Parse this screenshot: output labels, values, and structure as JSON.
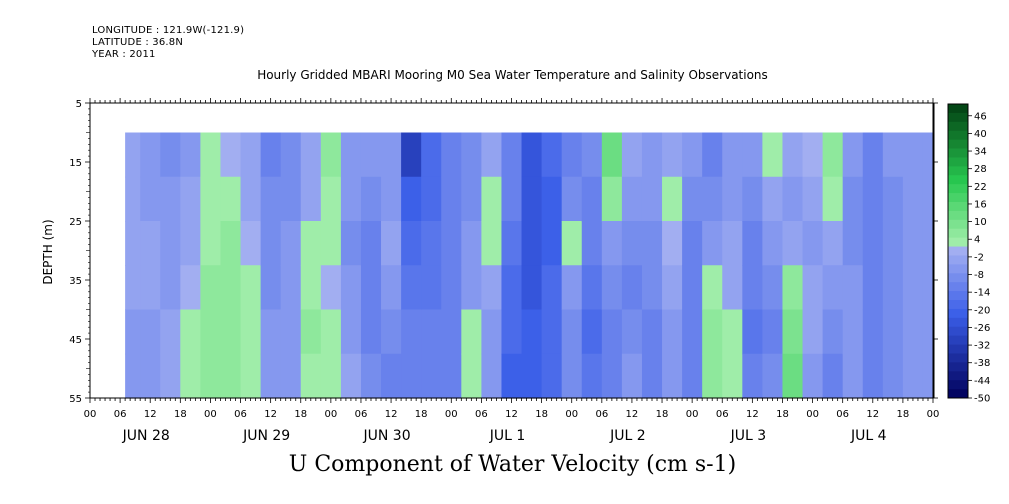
{
  "header": {
    "longitude": "LONGITUDE : 121.9W(-121.9)",
    "latitude": "LATITUDE : 36.8N",
    "year": "YEAR : 2011"
  },
  "chart_data": {
    "type": "heatmap",
    "title": "Hourly Gridded MBARI Mooring M0 Sea Water Temperature and Salinity Observations",
    "xlabel": "U Component of Water Velocity (cm s-1)",
    "ylabel": "DEPTH (m)",
    "y_ticks": [
      "5",
      "15",
      "25",
      "35",
      "45",
      "55"
    ],
    "ylim": [
      5,
      55
    ],
    "y_inverted": true,
    "data_depth_range": [
      10,
      55
    ],
    "hour_ticks": [
      "00",
      "06",
      "12",
      "18",
      "00",
      "06",
      "12",
      "18",
      "00",
      "06",
      "12",
      "18",
      "00",
      "06",
      "12",
      "18",
      "00",
      "06",
      "12",
      "18",
      "00",
      "06",
      "12",
      "18",
      "00",
      "06",
      "12",
      "18",
      "00"
    ],
    "day_labels": [
      "JUN 28",
      "JUN 29",
      "JUN 30",
      "JUL  1",
      "JUL  2",
      "JUL  3",
      "JUL  4"
    ],
    "time_range_hours": [
      0,
      168
    ],
    "data_start_hour": 7,
    "colorbar": {
      "labels": [
        "46",
        "40",
        "34",
        "28",
        "22",
        "16",
        "10",
        "4",
        "-2",
        "-8",
        "-14",
        "-20",
        "-26",
        "-32",
        "-38",
        "-44",
        "-50"
      ],
      "range": [
        -50,
        50
      ],
      "step": 3,
      "colors": {
        "deep_negative": "#00005a",
        "mid_negative": "#3a5ee8",
        "near_zero_negative": "#a9b4f2",
        "near_zero_positive": "#a8f0b0",
        "mid_positive": "#28c850",
        "deep_positive": "#003a10"
      }
    },
    "columns": [
      {
        "hour": 7,
        "values": [
          -4,
          -4,
          -4,
          -5,
          -6,
          -6
        ]
      },
      {
        "hour": 10,
        "values": [
          -8,
          -6,
          -5,
          -5,
          -6,
          -6
        ]
      },
      {
        "hour": 14,
        "values": [
          -10,
          -8,
          -7,
          -6,
          -5,
          -5
        ]
      },
      {
        "hour": 18,
        "values": [
          -6,
          -4,
          -3,
          -1,
          2,
          3
        ]
      },
      {
        "hour": 22,
        "values": [
          2,
          2,
          3,
          4,
          4,
          4
        ]
      },
      {
        "hour": 26,
        "values": [
          -2,
          3,
          4,
          4,
          5,
          5
        ]
      },
      {
        "hour": 30,
        "values": [
          -4,
          -3,
          -2,
          2,
          3,
          3
        ]
      },
      {
        "hour": 34,
        "values": [
          -12,
          -11,
          -10,
          -9,
          -8,
          -8
        ]
      },
      {
        "hour": 38,
        "values": [
          -10,
          -9,
          -8,
          -8,
          -7,
          -8
        ]
      },
      {
        "hour": 42,
        "values": [
          -4,
          -3,
          2,
          3,
          4,
          3
        ]
      },
      {
        "hour": 46,
        "values": [
          4,
          3,
          2,
          -2,
          2,
          2
        ]
      },
      {
        "hour": 50,
        "values": [
          -6,
          -8,
          -9,
          -8,
          -6,
          -5
        ]
      },
      {
        "hour": 54,
        "values": [
          -8,
          -10,
          -12,
          -13,
          -12,
          -11
        ]
      },
      {
        "hour": 58,
        "values": [
          -8,
          -6,
          -4,
          -6,
          -9,
          -12
        ]
      },
      {
        "hour": 62,
        "values": [
          -30,
          -22,
          -18,
          -15,
          -13,
          -12
        ]
      },
      {
        "hour": 66,
        "values": [
          -20,
          -18,
          -16,
          -15,
          -14,
          -13
        ]
      },
      {
        "hour": 70,
        "values": [
          -12,
          -12,
          -13,
          -14,
          -13,
          -12
        ]
      },
      {
        "hour": 74,
        "values": [
          -10,
          -9,
          -8,
          -7,
          2,
          3
        ]
      },
      {
        "hour": 78,
        "values": [
          -3,
          2,
          3,
          -3,
          -6,
          -8
        ]
      },
      {
        "hour": 82,
        "values": [
          -12,
          -14,
          -16,
          -18,
          -20,
          -22
        ]
      },
      {
        "hour": 86,
        "values": [
          -24,
          -26,
          -26,
          -24,
          -22,
          -22
        ]
      },
      {
        "hour": 90,
        "values": [
          -20,
          -22,
          -22,
          -20,
          -18,
          -18
        ]
      },
      {
        "hour": 94,
        "values": [
          -12,
          -10,
          2,
          -6,
          -9,
          -10
        ]
      },
      {
        "hour": 98,
        "values": [
          -10,
          -12,
          -14,
          -16,
          -18,
          -16
        ]
      },
      {
        "hour": 102,
        "values": [
          12,
          4,
          -6,
          -10,
          -12,
          -12
        ]
      },
      {
        "hour": 106,
        "values": [
          -4,
          -8,
          -10,
          -12,
          -10,
          -8
        ]
      },
      {
        "hour": 110,
        "values": [
          -6,
          -8,
          -10,
          -11,
          -12,
          -12
        ]
      },
      {
        "hour": 114,
        "values": [
          -3,
          2,
          -2,
          -4,
          -6,
          -8
        ]
      },
      {
        "hour": 118,
        "values": [
          -8,
          -10,
          -12,
          -14,
          -14,
          -13
        ]
      },
      {
        "hour": 122,
        "values": [
          -12,
          -10,
          -8,
          3,
          5,
          6
        ]
      },
      {
        "hour": 126,
        "values": [
          -8,
          -6,
          -5,
          -4,
          2,
          3
        ]
      },
      {
        "hour": 130,
        "values": [
          -8,
          -10,
          -12,
          -14,
          -16,
          -14
        ]
      },
      {
        "hour": 134,
        "values": [
          2,
          -4,
          -8,
          -10,
          -12,
          -10
        ]
      },
      {
        "hour": 138,
        "values": [
          -4,
          -6,
          -3,
          4,
          8,
          10
        ]
      },
      {
        "hour": 142,
        "values": [
          -2,
          -4,
          -6,
          -5,
          -4,
          -8
        ]
      },
      {
        "hour": 146,
        "values": [
          4,
          2,
          -4,
          -8,
          -10,
          -12
        ]
      },
      {
        "hour": 150,
        "values": [
          -8,
          -10,
          -10,
          -8,
          -6,
          -6
        ]
      },
      {
        "hour": 154,
        "values": [
          -12,
          -14,
          -14,
          -13,
          -12,
          -12
        ]
      },
      {
        "hour": 158,
        "values": [
          -8,
          -9,
          -10,
          -10,
          -9,
          -9
        ]
      },
      {
        "hour": 162,
        "values": [
          -6,
          -6,
          -6,
          -6,
          -6,
          -6
        ]
      },
      {
        "hour": 166,
        "values": [
          -6,
          -6,
          -6,
          -6,
          -6,
          -6
        ]
      }
    ]
  }
}
